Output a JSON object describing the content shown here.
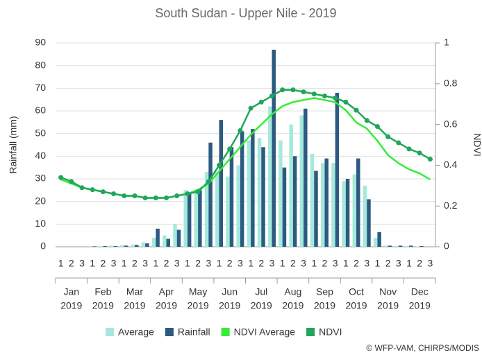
{
  "chart_data": {
    "type": "bar-line",
    "title": "South Sudan - Upper Nile - 2019",
    "y_label": "Rainfall (mm)",
    "y2_label": "NDVI",
    "credit": "© WFP-VAM, CHIRPS/MODIS",
    "categories": [
      "1",
      "2",
      "3",
      "1",
      "2",
      "3",
      "1",
      "2",
      "3",
      "1",
      "2",
      "3",
      "1",
      "2",
      "3",
      "1",
      "2",
      "3",
      "1",
      "2",
      "3",
      "1",
      "2",
      "3",
      "1",
      "2",
      "3",
      "1",
      "2",
      "3",
      "1",
      "2",
      "3",
      "1",
      "2",
      "3"
    ],
    "groups": [
      {
        "month": "Jan",
        "year": "2019"
      },
      {
        "month": "Feb",
        "year": "2019"
      },
      {
        "month": "Mar",
        "year": "2019"
      },
      {
        "month": "Apr",
        "year": "2019"
      },
      {
        "month": "May",
        "year": "2019"
      },
      {
        "month": "Jun",
        "year": "2019"
      },
      {
        "month": "Jul",
        "year": "2019"
      },
      {
        "month": "Aug",
        "year": "2019"
      },
      {
        "month": "Sep",
        "year": "2019"
      },
      {
        "month": "Oct",
        "year": "2019"
      },
      {
        "month": "Nov",
        "year": "2019"
      },
      {
        "month": "Dec",
        "year": "2019"
      }
    ],
    "ylim": [
      0,
      90
    ],
    "yticks": [
      0,
      10,
      20,
      30,
      40,
      50,
      60,
      70,
      80,
      90
    ],
    "y2lim": [
      0,
      1
    ],
    "y2ticks": [
      0,
      0.2,
      0.4,
      0.6,
      0.8,
      1
    ],
    "grid": true,
    "series": [
      {
        "name": "Average",
        "kind": "bar",
        "color": "#a6e9dc",
        "values": [
          0,
          0,
          0,
          0.3,
          0.3,
          0.5,
          0.8,
          1,
          2,
          4,
          5,
          10,
          25,
          25,
          33,
          33,
          31,
          36,
          47,
          48,
          62,
          47,
          54,
          58,
          41,
          37,
          37,
          29,
          32,
          27,
          4,
          0.5,
          0.3,
          0.3,
          0.2,
          0
        ]
      },
      {
        "name": "Rainfall",
        "kind": "bar",
        "color": "#2c5a80",
        "values": [
          0,
          0,
          0,
          0.2,
          0.3,
          0.3,
          0.5,
          0.8,
          1.5,
          8,
          3.5,
          7.5,
          24,
          25,
          46,
          56,
          44,
          51,
          52,
          44,
          87,
          35,
          40,
          61,
          33.5,
          39,
          68,
          30,
          39,
          21,
          6.5,
          0.5,
          0.5,
          0.5,
          0.3,
          0
        ]
      },
      {
        "name": "NDVI Average",
        "kind": "line",
        "axis": "y2",
        "color": "#33ee33",
        "values": [
          0.33,
          0.31,
          0.29,
          0.28,
          0.27,
          0.26,
          0.25,
          0.25,
          0.24,
          0.24,
          0.24,
          0.25,
          0.26,
          0.28,
          0.31,
          0.37,
          0.43,
          0.49,
          0.55,
          0.6,
          0.65,
          0.69,
          0.71,
          0.72,
          0.73,
          0.72,
          0.71,
          0.67,
          0.61,
          0.58,
          0.52,
          0.45,
          0.41,
          0.38,
          0.36,
          0.33
        ]
      },
      {
        "name": "NDVI",
        "kind": "line",
        "markers": true,
        "axis": "y2",
        "color": "#1fa65a",
        "values": [
          0.34,
          0.32,
          0.29,
          0.28,
          0.27,
          0.26,
          0.25,
          0.25,
          0.24,
          0.24,
          0.24,
          0.25,
          0.26,
          0.27,
          0.32,
          0.4,
          0.48,
          0.57,
          0.68,
          0.71,
          0.74,
          0.77,
          0.77,
          0.76,
          0.75,
          0.74,
          0.73,
          0.71,
          0.67,
          0.62,
          0.59,
          0.54,
          0.51,
          0.48,
          0.46,
          0.43
        ]
      }
    ]
  }
}
